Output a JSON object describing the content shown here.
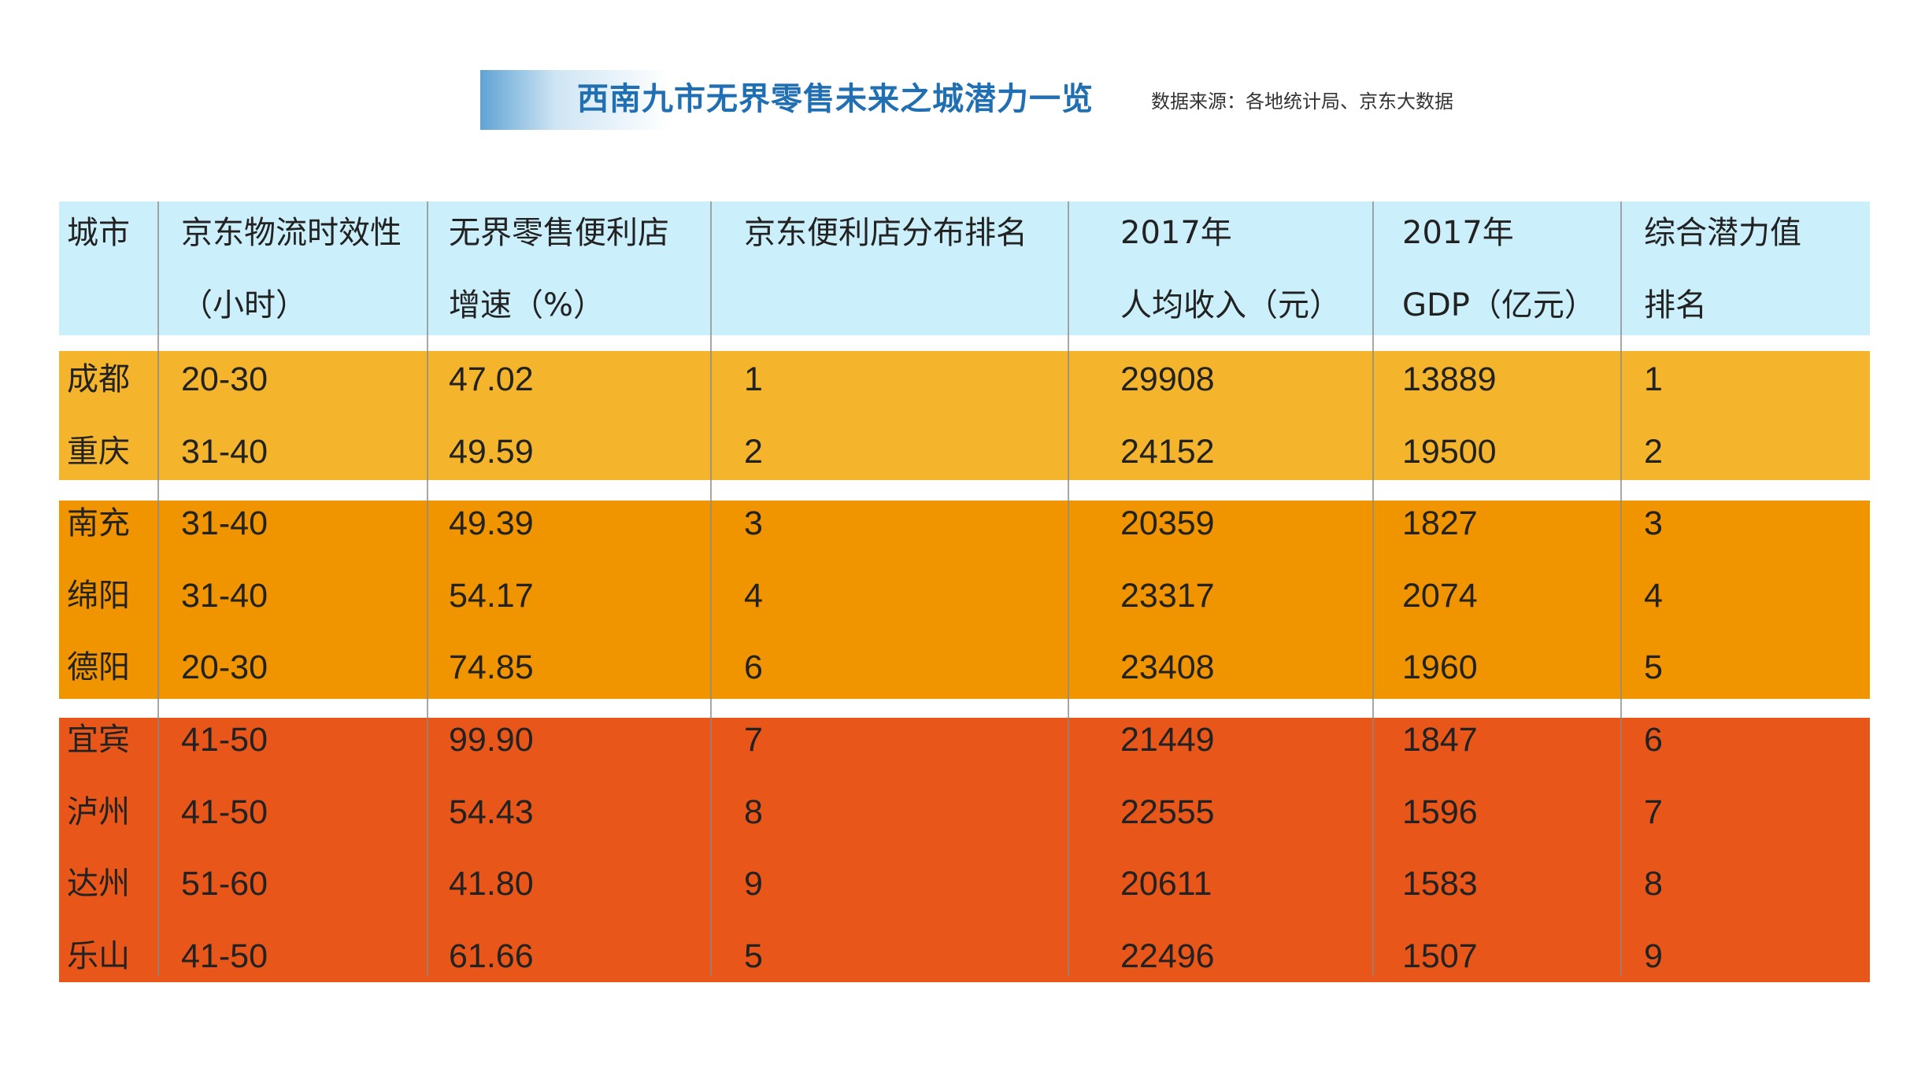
{
  "title": "西南九市无界零售未来之城潜力一览",
  "source": "数据来源：各地统计局、京东大数据",
  "chart_data": {
    "type": "table",
    "columns": [
      {
        "line1": "城市",
        "line2": ""
      },
      {
        "line1": "京东物流时效性",
        "line2": "（小时）"
      },
      {
        "line1": "无界零售便利店",
        "line2": "增速（%）"
      },
      {
        "line1": "京东便利店分布排名",
        "line2": ""
      },
      {
        "line1": "2017年",
        "line2": "人均收入（元）"
      },
      {
        "line1": "2017年",
        "line2": "GDP（亿元）"
      },
      {
        "line1": "综合潜力值",
        "line2": "排名"
      }
    ],
    "rows": [
      [
        "成都",
        "20-30",
        "47.02",
        "1",
        "29908",
        "13889",
        "1"
      ],
      [
        "重庆",
        "31-40",
        "49.59",
        "2",
        "24152",
        "19500",
        "2"
      ],
      [
        "南充",
        "31-40",
        "49.39",
        "3",
        "20359",
        "1827",
        "3"
      ],
      [
        "绵阳",
        "31-40",
        "54.17",
        "4",
        "23317",
        "2074",
        "4"
      ],
      [
        "德阳",
        "20-30",
        "74.85",
        "6",
        "23408",
        "1960",
        "5"
      ],
      [
        "宜宾",
        "41-50",
        "99.90",
        "7",
        "21449",
        "1847",
        "6"
      ],
      [
        "泸州",
        "41-50",
        "54.43",
        "8",
        "22555",
        "1596",
        "7"
      ],
      [
        "达州",
        "51-60",
        "41.80",
        "9",
        "20611",
        "1583",
        "8"
      ],
      [
        "乐山",
        "41-50",
        "61.66",
        "5",
        "22496",
        "1507",
        "9"
      ]
    ]
  },
  "colors": {
    "header_band": "#ccf0fb",
    "tier_1_band": "#f4b52c",
    "tier_2_band": "#f09400",
    "tier_3_band": "#e85619",
    "title_color": "#1f6fb2"
  }
}
